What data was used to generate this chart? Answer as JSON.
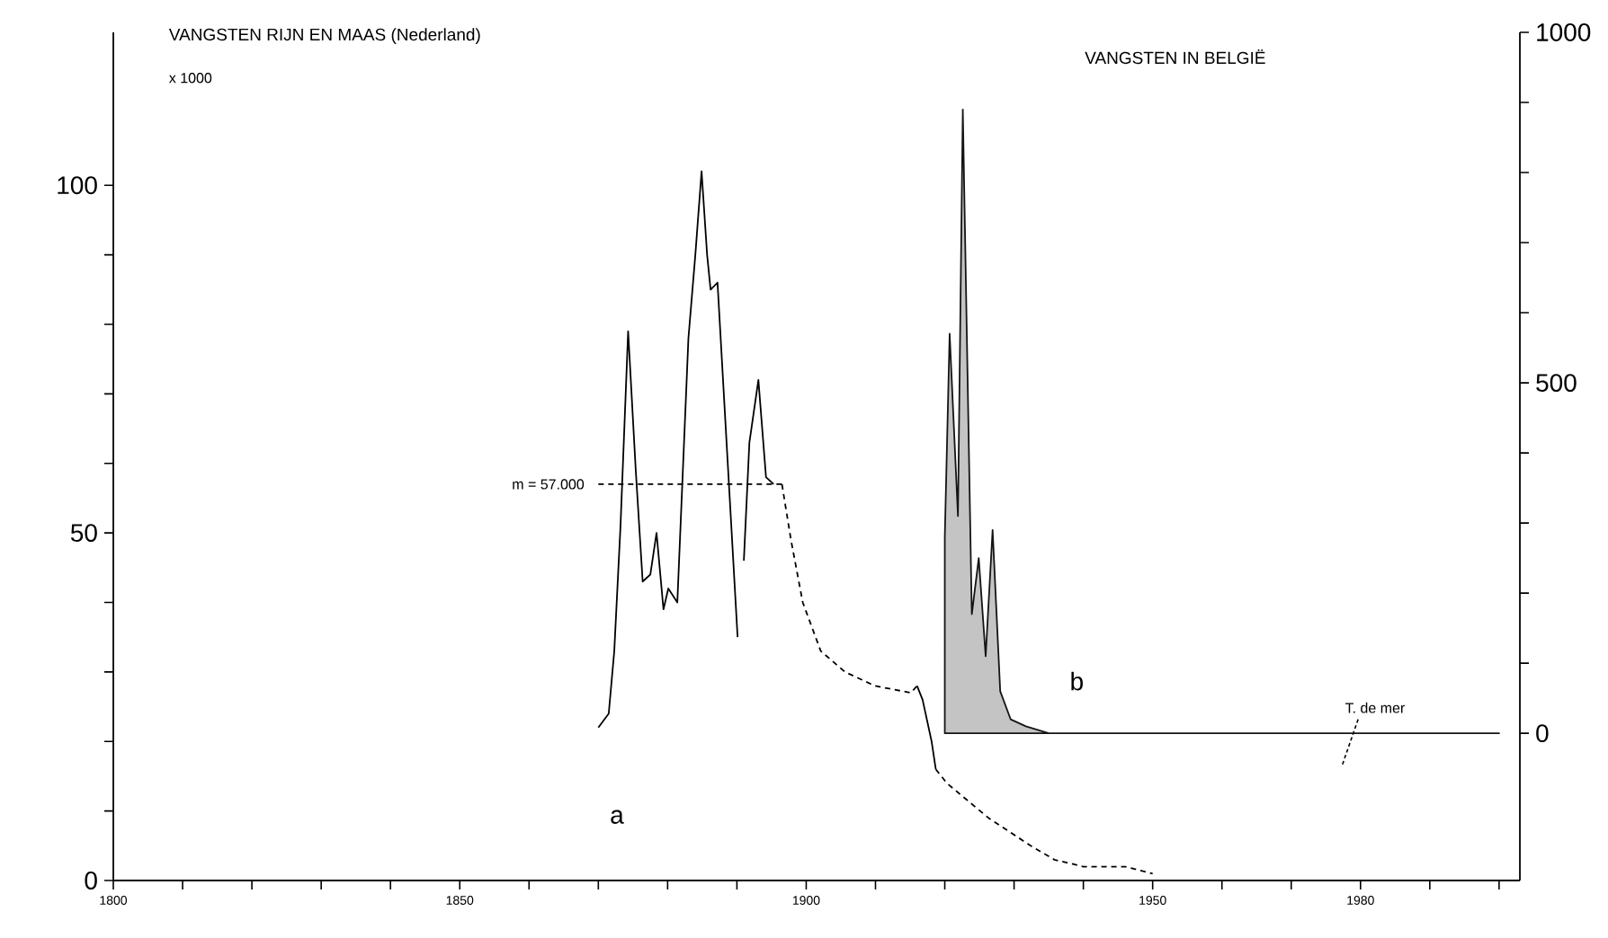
{
  "chart_data": {
    "type": "line",
    "title": "VANGSTEN RIJN EN MAAS (Nederland)",
    "subtitle": "VANGSTEN IN BELGIË",
    "ylabel": "x 1000",
    "xlim": [
      1800,
      2003
    ],
    "ylim": [
      0,
      122
    ],
    "y2lim": [
      -210,
      1000
    ],
    "xticks": [
      1800,
      {
        "value": 1810,
        "label": null
      },
      {
        "value": 1820,
        "label": null
      },
      {
        "value": 1830,
        "label": null
      },
      {
        "value": 1840,
        "label": null
      },
      1850,
      {
        "value": 1860,
        "label": null
      },
      {
        "value": 1870,
        "label": null
      },
      {
        "value": 1880,
        "label": null
      },
      {
        "value": 1890,
        "label": null
      },
      1900,
      {
        "value": 1910,
        "label": null
      },
      {
        "value": 1920,
        "label": null
      },
      {
        "value": 1930,
        "label": null
      },
      {
        "value": 1940,
        "label": null
      },
      1950,
      {
        "value": 1960,
        "label": null
      },
      {
        "value": 1970,
        "label": null
      },
      1980,
      {
        "value": 1990,
        "label": null
      },
      {
        "value": 2000,
        "label": null
      }
    ],
    "yticks": [
      0,
      {
        "value": 10,
        "label": null
      },
      {
        "value": 20,
        "label": null
      },
      {
        "value": 30,
        "label": null
      },
      {
        "value": 40,
        "label": null
      },
      50,
      {
        "value": 60,
        "label": null
      },
      {
        "value": 70,
        "label": null
      },
      {
        "value": 80,
        "label": null
      },
      {
        "value": 90,
        "label": null
      },
      100
    ],
    "y2ticks": [
      0,
      {
        "value": 100,
        "label": null
      },
      {
        "value": 200,
        "label": null
      },
      {
        "value": 300,
        "label": null
      },
      {
        "value": 400,
        "label": null
      },
      500,
      {
        "value": 600,
        "label": null
      },
      {
        "value": 700,
        "label": null
      },
      {
        "value": 800,
        "label": null
      },
      {
        "value": 900,
        "label": null
      },
      1000
    ],
    "series": [
      {
        "color": "#000000",
        "line_style": "solid",
        "x": [
          1870,
          1871.5,
          1872.3,
          1873.2,
          1874.3,
          1875.4,
          1876.4,
          1877.5,
          1878.4,
          1879.4,
          1880.1,
          1881.4,
          1883,
          1884,
          1884.9,
          1885.7,
          1886.2,
          1887.2,
          1890.1,
          1890.5,
          1891,
          1891.8,
          1893.1,
          1894.2,
          1895.3,
          1895.8,
          1916,
          1916.8,
          1918.1,
          1918.7
        ],
        "values": [
          22,
          24,
          33,
          51,
          79,
          59,
          43,
          44,
          50,
          39,
          42,
          40,
          78,
          90,
          102,
          90,
          85,
          86,
          35,
          null,
          46,
          63,
          72,
          58,
          57,
          null,
          28,
          26,
          20,
          16
        ]
      },
      {
        "color": "#000000",
        "line_style": "dashed",
        "x": [
          1896.5,
          1897.8,
          1899.5,
          1902.1,
          1905.6,
          1909.9,
          1915.1,
          1916,
          1917,
          1918.7,
          1920.3,
          1926.3,
          1932.4,
          1935.8,
          1940,
          1946,
          1950
        ],
        "values": [
          57,
          49,
          40,
          33,
          30,
          28,
          27,
          28,
          null,
          16,
          14,
          9,
          5,
          3,
          2,
          2,
          1
        ]
      },
      {
        "name": "m = 57.000",
        "color": "#000000",
        "line_style": "dashed",
        "x": [
          1870,
          1896.5
        ],
        "values": [
          57,
          57
        ]
      },
      {
        "type": "area",
        "axis": "y2",
        "color": "#c4c4c4",
        "x": [
          1920,
          1920,
          1920.7,
          1921.9,
          1922.6,
          1923.9,
          1924.9,
          1925.9,
          1926.9,
          1928,
          1929.5,
          1931.7,
          1935,
          2000
        ],
        "values": [
          0,
          280,
          570,
          310,
          890,
          170,
          250,
          110,
          290,
          60,
          20,
          10,
          0,
          0
        ]
      }
    ],
    "annotations": [
      "a",
      "b",
      "T. de mer"
    ]
  }
}
